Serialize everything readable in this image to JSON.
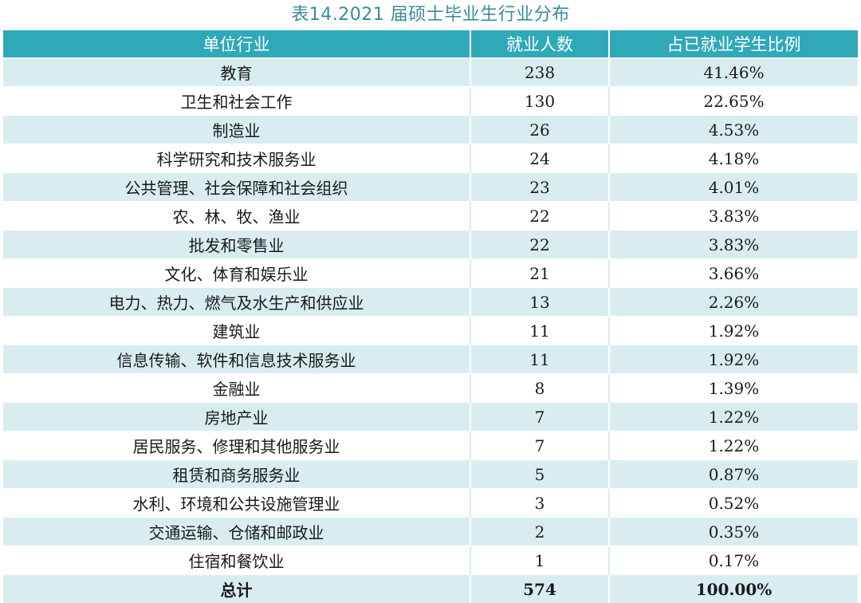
{
  "caption": "表14.2021 届硕士毕业生行业分布",
  "table": {
    "headers": [
      "单位行业",
      "就业人数",
      "占已就业学生比例"
    ],
    "rows": [
      {
        "industry": "教育",
        "count": "238",
        "pct": "41.46%"
      },
      {
        "industry": "卫生和社会工作",
        "count": "130",
        "pct": "22.65%"
      },
      {
        "industry": "制造业",
        "count": "26",
        "pct": "4.53%"
      },
      {
        "industry": "科学研究和技术服务业",
        "count": "24",
        "pct": "4.18%"
      },
      {
        "industry": "公共管理、社会保障和社会组织",
        "count": "23",
        "pct": "4.01%"
      },
      {
        "industry": "农、林、牧、渔业",
        "count": "22",
        "pct": "3.83%"
      },
      {
        "industry": "批发和零售业",
        "count": "22",
        "pct": "3.83%"
      },
      {
        "industry": "文化、体育和娱乐业",
        "count": "21",
        "pct": "3.66%"
      },
      {
        "industry": "电力、热力、燃气及水生产和供应业",
        "count": "13",
        "pct": "2.26%"
      },
      {
        "industry": "建筑业",
        "count": "11",
        "pct": "1.92%"
      },
      {
        "industry": "信息传输、软件和信息技术服务业",
        "count": "11",
        "pct": "1.92%"
      },
      {
        "industry": "金融业",
        "count": "8",
        "pct": "1.39%"
      },
      {
        "industry": "房地产业",
        "count": "7",
        "pct": "1.22%"
      },
      {
        "industry": "居民服务、修理和其他服务业",
        "count": "7",
        "pct": "1.22%"
      },
      {
        "industry": "租赁和商务服务业",
        "count": "5",
        "pct": "0.87%"
      },
      {
        "industry": "水利、环境和公共设施管理业",
        "count": "3",
        "pct": "0.52%"
      },
      {
        "industry": "交通运输、仓储和邮政业",
        "count": "2",
        "pct": "0.35%"
      },
      {
        "industry": "住宿和餐饮业",
        "count": "1",
        "pct": "0.17%"
      }
    ],
    "total": {
      "industry": "总计",
      "count": "574",
      "pct": "100.00%"
    }
  },
  "colors": {
    "header_bg": "#2fa9b8",
    "stripe_bg": "#d9edf1",
    "caption": "#3a8b9a"
  }
}
